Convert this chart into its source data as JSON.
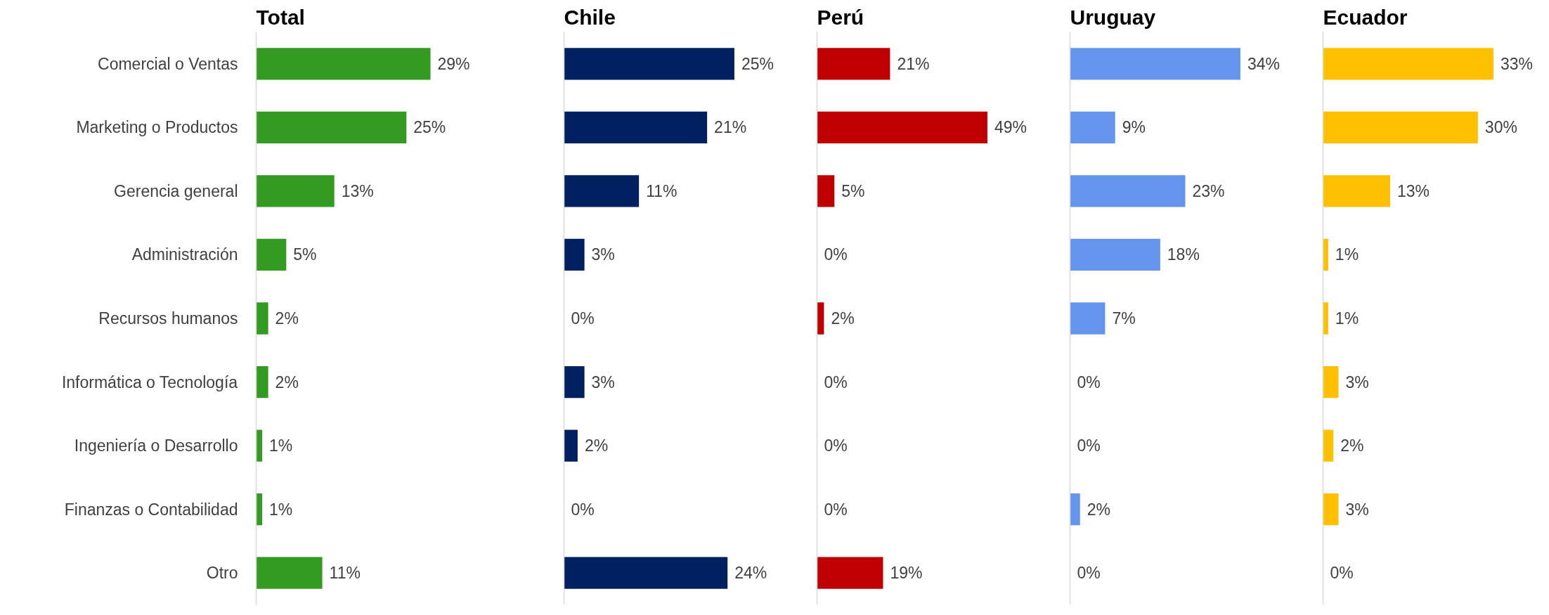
{
  "chart_data": [
    {
      "type": "bar",
      "orientation": "horizontal",
      "title": "Total",
      "categories": [
        "Comercial o Ventas",
        "Marketing o Productos",
        "Gerencia general",
        "Administración",
        "Recursos humanos",
        "Informática o Tecnología",
        "Ingeniería o Desarrollo",
        "Finanzas o Contabilidad",
        "Otro"
      ],
      "series": [
        {
          "color": "#339a22",
          "values": [
            29,
            25,
            13,
            5,
            2,
            2,
            1,
            1,
            11
          ],
          "value_labels": [
            "29%",
            "25%",
            "13%",
            "5%",
            "2%",
            "2%",
            "1%",
            "1%",
            "11%"
          ]
        }
      ],
      "tick_labels": "y"
    },
    {
      "type": "bar",
      "orientation": "horizontal",
      "title": "Chile",
      "categories": [
        null,
        null,
        null,
        null,
        null,
        null,
        null,
        null,
        null
      ],
      "series": [
        {
          "color": "#002060",
          "values": [
            25,
            21,
            11,
            3,
            0,
            3,
            2,
            0,
            24
          ],
          "value_labels": [
            "25%",
            "21%",
            "11%",
            "3%",
            "0%",
            "3%",
            "2%",
            "0%",
            "24%"
          ]
        }
      ],
      "tick_labels": false
    },
    {
      "type": "bar",
      "orientation": "horizontal",
      "title": "Perú",
      "categories": [
        null,
        null,
        null,
        null,
        null,
        null,
        null,
        null,
        null
      ],
      "series": [
        {
          "color": "#c00000",
          "values": [
            21,
            49,
            5,
            0,
            2,
            0,
            0,
            0,
            19
          ],
          "value_labels": [
            "21%",
            "49%",
            "5%",
            "0%",
            "2%",
            "0%",
            "0%",
            "0%",
            "19%"
          ]
        }
      ],
      "tick_labels": false
    },
    {
      "type": "bar",
      "orientation": "horizontal",
      "title": "Uruguay",
      "categories": [
        null,
        null,
        null,
        null,
        null,
        null,
        null,
        null,
        null
      ],
      "series": [
        {
          "color": "#6495ed",
          "values": [
            34,
            9,
            23,
            18,
            7,
            0,
            0,
            2,
            0
          ],
          "value_labels": [
            "34%",
            "9%",
            "23%",
            "18%",
            "7%",
            "0%",
            "0%",
            "2%",
            "0%"
          ]
        }
      ],
      "tick_labels": false
    },
    {
      "type": "bar",
      "orientation": "horizontal",
      "title": "Ecuador",
      "categories": [
        null,
        null,
        null,
        null,
        null,
        null,
        null,
        null,
        null
      ],
      "series": [
        {
          "color": "#ffc000",
          "values": [
            33,
            30,
            13,
            1,
            1,
            3,
            2,
            3,
            0
          ],
          "value_labels": [
            "33%",
            "30%",
            "13%",
            "1%",
            "1%",
            "3%",
            "2%",
            "3%",
            "0%"
          ]
        }
      ],
      "tick_labels": false
    }
  ]
}
